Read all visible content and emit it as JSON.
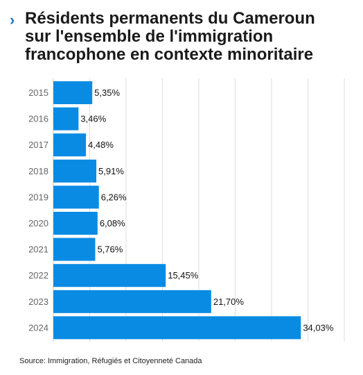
{
  "title": {
    "chevron": "›",
    "lines": [
      "Résidents permanents du Cameroun",
      "sur l'ensemble de l'immigration",
      "francophone en contexte minoritaire"
    ]
  },
  "source": "Source: Immigration, Réfugiés et Citoyenneté Canada",
  "colors": {
    "bar": "#0a8be3",
    "grid": "#dddddd",
    "axis": "#cccccc"
  },
  "chart_data": {
    "type": "bar",
    "orientation": "horizontal",
    "title": "Résidents permanents du Cameroun sur l'ensemble de l'immigration francophone en contexte minoritaire",
    "categories": [
      "2015",
      "2016",
      "2017",
      "2018",
      "2019",
      "2020",
      "2021",
      "2022",
      "2023",
      "2024"
    ],
    "values": [
      5.35,
      3.46,
      4.48,
      5.91,
      6.26,
      6.08,
      5.76,
      15.45,
      21.7,
      34.03
    ],
    "value_labels": [
      "5,35%",
      "3,46%",
      "4,48%",
      "5,91%",
      "6,26%",
      "6,08%",
      "5,76%",
      "15,45%",
      "21,70%",
      "34,03%"
    ],
    "xlim": [
      0,
      40
    ],
    "grid": true,
    "xlabel": "",
    "ylabel": ""
  }
}
